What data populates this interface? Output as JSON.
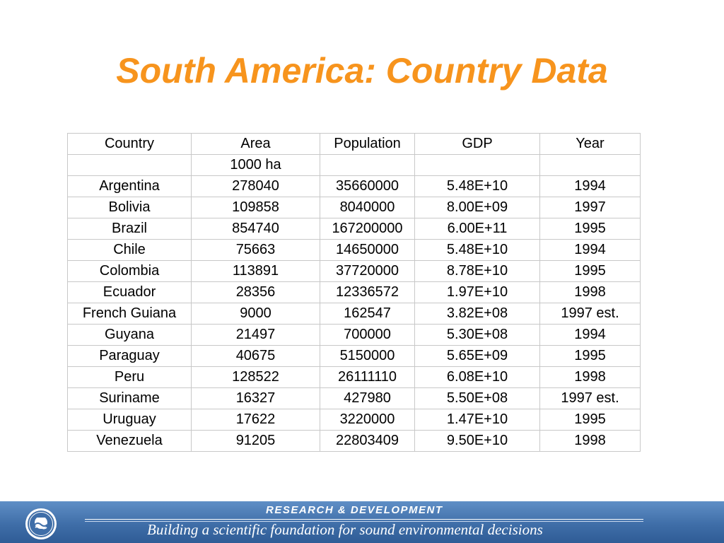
{
  "title": "South America: Country Data",
  "colors": {
    "title": "#f7941d",
    "footer_band": "#4a7ab5",
    "table_border": "#c8c8c8"
  },
  "table": {
    "columns": [
      "Country",
      "Area",
      "Population",
      "GDP",
      "Year"
    ],
    "units_row": [
      "",
      "1000 ha",
      "",
      "",
      ""
    ],
    "rows": [
      [
        "Argentina",
        "278040",
        "35660000",
        "5.48E+10",
        "1994"
      ],
      [
        "Bolivia",
        "109858",
        "8040000",
        "8.00E+09",
        "1997"
      ],
      [
        "Brazil",
        "854740",
        "167200000",
        "6.00E+11",
        "1995"
      ],
      [
        "Chile",
        "75663",
        "14650000",
        "5.48E+10",
        "1994"
      ],
      [
        "Colombia",
        "113891",
        "37720000",
        "8.78E+10",
        "1995"
      ],
      [
        "Ecuador",
        "28356",
        "12336572",
        "1.97E+10",
        "1998"
      ],
      [
        "French Guiana",
        "9000",
        "162547",
        "3.82E+08",
        "1997 est."
      ],
      [
        "Guyana",
        "21497",
        "700000",
        "5.30E+08",
        "1994"
      ],
      [
        "Paraguay",
        "40675",
        "5150000",
        "5.65E+09",
        "1995"
      ],
      [
        "Peru",
        "128522",
        "26111110",
        "6.08E+10",
        "1998"
      ],
      [
        "Suriname",
        "16327",
        "427980",
        "5.50E+08",
        "1997 est."
      ],
      [
        "Uruguay",
        "17622",
        "3220000",
        "1.47E+10",
        "1995"
      ],
      [
        "Venezuela",
        "91205",
        "22803409",
        "9.50E+10",
        "1998"
      ]
    ]
  },
  "footer": {
    "heading": "RESEARCH &  DEVELOPMENT",
    "tagline": "Building a scientific foundation for sound environmental decisions",
    "logo_icon": "epa-seal-icon"
  }
}
